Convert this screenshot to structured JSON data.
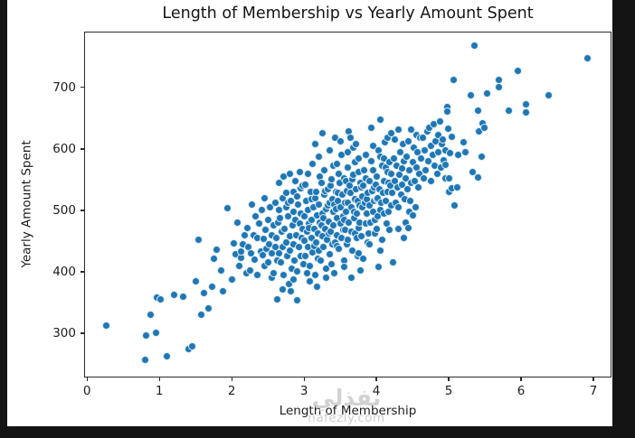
{
  "window": {
    "background": "#141414",
    "canvas_background": "#ffffff"
  },
  "watermark": {
    "arabic": "نفذلي",
    "domain": "nafezly.com"
  },
  "chart_data": {
    "type": "scatter",
    "title": "Length of Membership vs Yearly Amount Spent",
    "xlabel": "Length of Membership",
    "ylabel": "Yearly Amount Spent",
    "xlim": [
      -0.04,
      7.25
    ],
    "ylim": [
      228,
      791
    ],
    "x_ticks": [
      0,
      1,
      2,
      3,
      4,
      5,
      6,
      7
    ],
    "y_ticks": [
      300,
      400,
      500,
      600,
      700
    ],
    "grid": false,
    "legend": "none",
    "marker_color": "#1f77b4",
    "marker_edge_color": "#ffffff",
    "points": [
      [
        0.27,
        312
      ],
      [
        0.8,
        257
      ],
      [
        0.82,
        297
      ],
      [
        0.88,
        330
      ],
      [
        0.95,
        301
      ],
      [
        0.97,
        358
      ],
      [
        1.02,
        355
      ],
      [
        1.1,
        262
      ],
      [
        1.21,
        363
      ],
      [
        1.33,
        360
      ],
      [
        1.4,
        274
      ],
      [
        1.45,
        279
      ],
      [
        1.5,
        385
      ],
      [
        1.54,
        452
      ],
      [
        1.58,
        330
      ],
      [
        1.62,
        365
      ],
      [
        1.68,
        340
      ],
      [
        1.73,
        376
      ],
      [
        1.76,
        422
      ],
      [
        1.79,
        436
      ],
      [
        1.85,
        402
      ],
      [
        1.88,
        368
      ],
      [
        1.94,
        503
      ],
      [
        2.0,
        388
      ],
      [
        2.03,
        446
      ],
      [
        2.05,
        428
      ],
      [
        2.08,
        480
      ],
      [
        2.1,
        410
      ],
      [
        2.13,
        423
      ],
      [
        2.13,
        433
      ],
      [
        2.15,
        445
      ],
      [
        2.18,
        460
      ],
      [
        2.2,
        398
      ],
      [
        2.22,
        472
      ],
      [
        2.23,
        441
      ],
      [
        2.25,
        402
      ],
      [
        2.27,
        430
      ],
      [
        2.28,
        510
      ],
      [
        2.3,
        460
      ],
      [
        2.32,
        420
      ],
      [
        2.33,
        490
      ],
      [
        2.35,
        395
      ],
      [
        2.36,
        455
      ],
      [
        2.38,
        478
      ],
      [
        2.4,
        433
      ],
      [
        2.42,
        500
      ],
      [
        2.43,
        427
      ],
      [
        2.44,
        453
      ],
      [
        2.45,
        410
      ],
      [
        2.45,
        520
      ],
      [
        2.47,
        468
      ],
      [
        2.48,
        438
      ],
      [
        2.5,
        485
      ],
      [
        2.5,
        415
      ],
      [
        2.52,
        445
      ],
      [
        2.53,
        505
      ],
      [
        2.55,
        460
      ],
      [
        2.55,
        390
      ],
      [
        2.56,
        430
      ],
      [
        2.58,
        475
      ],
      [
        2.58,
        398
      ],
      [
        2.6,
        440
      ],
      [
        2.6,
        512
      ],
      [
        2.62,
        455
      ],
      [
        2.63,
        355
      ],
      [
        2.63,
        418
      ],
      [
        2.64,
        480
      ],
      [
        2.65,
        430
      ],
      [
        2.66,
        500
      ],
      [
        2.66,
        545
      ],
      [
        2.67,
        488
      ],
      [
        2.68,
        415
      ],
      [
        2.69,
        465
      ],
      [
        2.7,
        440
      ],
      [
        2.7,
        372
      ],
      [
        2.71,
        520
      ],
      [
        2.72,
        395
      ],
      [
        2.72,
        555
      ],
      [
        2.73,
        470
      ],
      [
        2.75,
        448
      ],
      [
        2.75,
        528
      ],
      [
        2.76,
        505
      ],
      [
        2.77,
        425
      ],
      [
        2.78,
        490
      ],
      [
        2.78,
        512
      ],
      [
        2.79,
        380
      ],
      [
        2.8,
        458
      ],
      [
        2.8,
        560
      ],
      [
        2.81,
        435
      ],
      [
        2.82,
        515
      ],
      [
        2.82,
        368
      ],
      [
        2.83,
        405
      ],
      [
        2.84,
        475
      ],
      [
        2.85,
        445
      ],
      [
        2.85,
        498
      ],
      [
        2.86,
        530
      ],
      [
        2.86,
        388
      ],
      [
        2.87,
        418
      ],
      [
        2.88,
        485
      ],
      [
        2.88,
        548
      ],
      [
        2.89,
        460
      ],
      [
        2.9,
        400
      ],
      [
        2.9,
        522
      ],
      [
        2.91,
        354
      ],
      [
        2.92,
        510
      ],
      [
        2.93,
        440
      ],
      [
        2.94,
        478
      ],
      [
        2.94,
        562
      ],
      [
        2.95,
        425
      ],
      [
        2.96,
        495
      ],
      [
        2.96,
        536
      ],
      [
        2.97,
        455
      ],
      [
        2.98,
        540
      ],
      [
        2.98,
        470
      ],
      [
        2.99,
        412
      ],
      [
        3.0,
        450
      ],
      [
        3.01,
        490
      ],
      [
        3.02,
        425
      ],
      [
        3.02,
        542
      ],
      [
        3.03,
        515
      ],
      [
        3.04,
        465
      ],
      [
        3.04,
        398
      ],
      [
        3.05,
        440
      ],
      [
        3.05,
        560
      ],
      [
        3.06,
        500
      ],
      [
        3.07,
        478
      ],
      [
        3.07,
        472
      ],
      [
        3.08,
        410
      ],
      [
        3.08,
        385
      ],
      [
        3.09,
        530
      ],
      [
        3.1,
        455
      ],
      [
        3.1,
        518
      ],
      [
        3.11,
        485
      ],
      [
        3.12,
        432
      ],
      [
        3.12,
        575
      ],
      [
        3.13,
        505
      ],
      [
        3.14,
        470
      ],
      [
        3.14,
        442
      ],
      [
        3.15,
        395
      ],
      [
        3.15,
        608
      ],
      [
        3.16,
        520
      ],
      [
        3.17,
        448
      ],
      [
        3.17,
        530
      ],
      [
        3.18,
        492
      ],
      [
        3.18,
        375
      ],
      [
        3.19,
        462
      ],
      [
        3.19,
        422
      ],
      [
        3.2,
        435
      ],
      [
        3.2,
        588
      ],
      [
        3.21,
        510
      ],
      [
        3.22,
        480
      ],
      [
        3.22,
        555
      ],
      [
        3.23,
        418
      ],
      [
        3.24,
        545
      ],
      [
        3.24,
        475
      ],
      [
        3.25,
        458
      ],
      [
        3.25,
        625
      ],
      [
        3.26,
        495
      ],
      [
        3.27,
        440
      ],
      [
        3.27,
        488
      ],
      [
        3.28,
        525
      ],
      [
        3.28,
        565
      ],
      [
        3.29,
        470
      ],
      [
        3.29,
        532
      ],
      [
        3.3,
        405
      ],
      [
        3.3,
        390
      ],
      [
        3.31,
        502
      ],
      [
        3.32,
        452
      ],
      [
        3.33,
        535
      ],
      [
        3.33,
        508
      ],
      [
        3.34,
        482
      ],
      [
        3.34,
        462
      ],
      [
        3.35,
        428
      ],
      [
        3.35,
        598
      ],
      [
        3.36,
        512
      ],
      [
        3.37,
        465
      ],
      [
        3.37,
        540
      ],
      [
        3.38,
        550
      ],
      [
        3.38,
        412
      ],
      [
        3.39,
        445
      ],
      [
        3.39,
        518
      ],
      [
        3.4,
        498
      ],
      [
        3.4,
        572
      ],
      [
        3.41,
        475
      ],
      [
        3.42,
        510
      ],
      [
        3.42,
        398
      ],
      [
        3.43,
        448
      ],
      [
        3.43,
        618
      ],
      [
        3.44,
        530
      ],
      [
        3.44,
        502
      ],
      [
        3.45,
        488
      ],
      [
        3.45,
        575
      ],
      [
        3.46,
        460
      ],
      [
        3.46,
        442
      ],
      [
        3.47,
        515
      ],
      [
        3.47,
        528
      ],
      [
        3.48,
        438
      ],
      [
        3.48,
        560
      ],
      [
        3.49,
        545
      ],
      [
        3.5,
        478
      ],
      [
        3.5,
        612
      ],
      [
        3.51,
        505
      ],
      [
        3.52,
        455
      ],
      [
        3.52,
        590
      ],
      [
        3.53,
        525
      ],
      [
        3.54,
        490
      ],
      [
        3.54,
        468
      ],
      [
        3.55,
        418
      ],
      [
        3.55,
        408
      ],
      [
        3.56,
        552
      ],
      [
        3.56,
        485
      ],
      [
        3.57,
        468
      ],
      [
        3.57,
        512
      ],
      [
        3.58,
        498
      ],
      [
        3.58,
        548
      ],
      [
        3.59,
        532
      ],
      [
        3.59,
        445
      ],
      [
        3.6,
        452
      ],
      [
        3.6,
        570
      ],
      [
        3.61,
        512
      ],
      [
        3.61,
        595
      ],
      [
        3.62,
        480
      ],
      [
        3.62,
        629
      ],
      [
        3.64,
        619
      ],
      [
        3.63,
        540
      ],
      [
        3.64,
        528
      ],
      [
        3.65,
        465
      ],
      [
        3.66,
        505
      ],
      [
        3.66,
        390
      ],
      [
        3.67,
        435
      ],
      [
        3.67,
        550
      ],
      [
        3.68,
        558
      ],
      [
        3.68,
        602
      ],
      [
        3.69,
        488
      ],
      [
        3.69,
        498
      ],
      [
        3.7,
        518
      ],
      [
        3.7,
        578
      ],
      [
        3.71,
        462
      ],
      [
        3.72,
        535
      ],
      [
        3.72,
        608
      ],
      [
        3.73,
        495
      ],
      [
        3.73,
        455
      ],
      [
        3.74,
        425
      ],
      [
        3.74,
        515
      ],
      [
        3.75,
        562
      ],
      [
        3.75,
        585
      ],
      [
        3.76,
        472
      ],
      [
        3.76,
        430
      ],
      [
        3.77,
        508
      ],
      [
        3.77,
        480
      ],
      [
        3.78,
        545
      ],
      [
        3.78,
        402
      ],
      [
        3.79,
        458
      ],
      [
        3.79,
        538
      ],
      [
        3.8,
        522
      ],
      [
        3.81,
        505
      ],
      [
        3.82,
        540
      ],
      [
        3.82,
        422
      ],
      [
        3.83,
        565
      ],
      [
        3.84,
        512
      ],
      [
        3.85,
        478
      ],
      [
        3.85,
        590
      ],
      [
        3.86,
        552
      ],
      [
        3.87,
        495
      ],
      [
        3.87,
        518
      ],
      [
        3.88,
        528
      ],
      [
        3.88,
        448
      ],
      [
        3.89,
        462
      ],
      [
        3.9,
        548
      ],
      [
        3.9,
        445
      ],
      [
        3.91,
        508
      ],
      [
        3.92,
        480
      ],
      [
        3.93,
        635
      ],
      [
        3.93,
        580
      ],
      [
        3.94,
        532
      ],
      [
        3.95,
        498
      ],
      [
        3.95,
        605
      ],
      [
        3.96,
        565
      ],
      [
        3.97,
        515
      ],
      [
        3.97,
        538
      ],
      [
        3.98,
        485
      ],
      [
        3.98,
        462
      ],
      [
        3.99,
        542
      ],
      [
        4.0,
        470
      ],
      [
        4.0,
        518
      ],
      [
        4.01,
        555
      ],
      [
        4.02,
        520
      ],
      [
        4.02,
        490
      ],
      [
        4.03,
        408
      ],
      [
        4.03,
        598
      ],
      [
        4.04,
        535
      ],
      [
        4.05,
        500
      ],
      [
        4.05,
        588
      ],
      [
        4.06,
        648
      ],
      [
        4.06,
        434
      ],
      [
        4.07,
        512
      ],
      [
        4.08,
        572
      ],
      [
        4.08,
        452
      ],
      [
        4.09,
        528
      ],
      [
        4.1,
        495
      ],
      [
        4.1,
        585
      ],
      [
        4.11,
        548
      ],
      [
        4.12,
        611
      ],
      [
        4.13,
        515
      ],
      [
        4.13,
        570
      ],
      [
        4.14,
        478
      ],
      [
        4.15,
        562
      ],
      [
        4.15,
        618
      ],
      [
        4.16,
        530
      ],
      [
        4.17,
        498
      ],
      [
        4.17,
        545
      ],
      [
        4.18,
        578
      ],
      [
        4.18,
        468
      ],
      [
        4.19,
        540
      ],
      [
        4.2,
        508
      ],
      [
        4.2,
        625
      ],
      [
        4.23,
        416
      ],
      [
        4.21,
        560
      ],
      [
        4.22,
        528
      ],
      [
        4.24,
        585
      ],
      [
        4.25,
        548
      ],
      [
        4.26,
        615
      ],
      [
        4.27,
        512
      ],
      [
        4.28,
        572
      ],
      [
        4.29,
        538
      ],
      [
        4.3,
        632
      ],
      [
        4.3,
        470
      ],
      [
        4.31,
        505
      ],
      [
        4.32,
        558
      ],
      [
        4.33,
        595
      ],
      [
        4.34,
        525
      ],
      [
        4.35,
        568
      ],
      [
        4.36,
        542
      ],
      [
        4.37,
        608
      ],
      [
        4.38,
        580
      ],
      [
        4.38,
        455
      ],
      [
        4.39,
        518
      ],
      [
        4.4,
        552
      ],
      [
        4.41,
        480
      ],
      [
        4.42,
        588
      ],
      [
        4.43,
        535
      ],
      [
        4.44,
        612
      ],
      [
        4.44,
        472
      ],
      [
        4.45,
        565
      ],
      [
        4.46,
        498
      ],
      [
        4.47,
        515
      ],
      [
        4.48,
        632
      ],
      [
        4.48,
        545
      ],
      [
        4.5,
        578
      ],
      [
        4.51,
        492
      ],
      [
        4.52,
        602
      ],
      [
        4.53,
        548
      ],
      [
        4.54,
        505
      ],
      [
        4.55,
        622
      ],
      [
        4.56,
        570
      ],
      [
        4.57,
        595
      ],
      [
        4.58,
        538
      ],
      [
        4.59,
        560
      ],
      [
        4.6,
        619
      ],
      [
        4.62,
        585
      ],
      [
        4.64,
        618
      ],
      [
        4.65,
        552
      ],
      [
        4.67,
        598
      ],
      [
        4.68,
        565
      ],
      [
        4.7,
        628
      ],
      [
        4.72,
        580
      ],
      [
        4.73,
        635
      ],
      [
        4.75,
        605
      ],
      [
        4.76,
        548
      ],
      [
        4.78,
        590
      ],
      [
        4.79,
        640
      ],
      [
        4.8,
        572
      ],
      [
        4.82,
        612
      ],
      [
        4.84,
        560
      ],
      [
        4.85,
        595
      ],
      [
        4.86,
        622
      ],
      [
        4.88,
        645
      ],
      [
        4.89,
        570
      ],
      [
        4.9,
        608
      ],
      [
        4.92,
        615
      ],
      [
        4.93,
        582
      ],
      [
        4.95,
        552
      ],
      [
        4.95,
        574
      ],
      [
        4.96,
        598
      ],
      [
        4.98,
        668
      ],
      [
        4.98,
        661
      ],
      [
        4.99,
        633
      ],
      [
        5.0,
        552
      ],
      [
        5.01,
        530
      ],
      [
        5.02,
        594
      ],
      [
        5.04,
        620
      ],
      [
        5.04,
        536
      ],
      [
        5.07,
        713
      ],
      [
        5.08,
        508
      ],
      [
        5.12,
        537
      ],
      [
        5.13,
        591
      ],
      [
        5.2,
        611
      ],
      [
        5.23,
        595
      ],
      [
        5.31,
        688
      ],
      [
        5.33,
        563
      ],
      [
        5.36,
        768
      ],
      [
        5.4,
        663
      ],
      [
        5.4,
        553
      ],
      [
        5.42,
        629
      ],
      [
        5.45,
        588
      ],
      [
        5.47,
        642
      ],
      [
        5.49,
        635
      ],
      [
        5.53,
        691
      ],
      [
        5.69,
        712
      ],
      [
        5.69,
        700
      ],
      [
        5.83,
        663
      ],
      [
        5.95,
        727
      ],
      [
        6.07,
        673
      ],
      [
        6.07,
        660
      ],
      [
        6.38,
        687
      ],
      [
        6.92,
        748
      ]
    ]
  }
}
